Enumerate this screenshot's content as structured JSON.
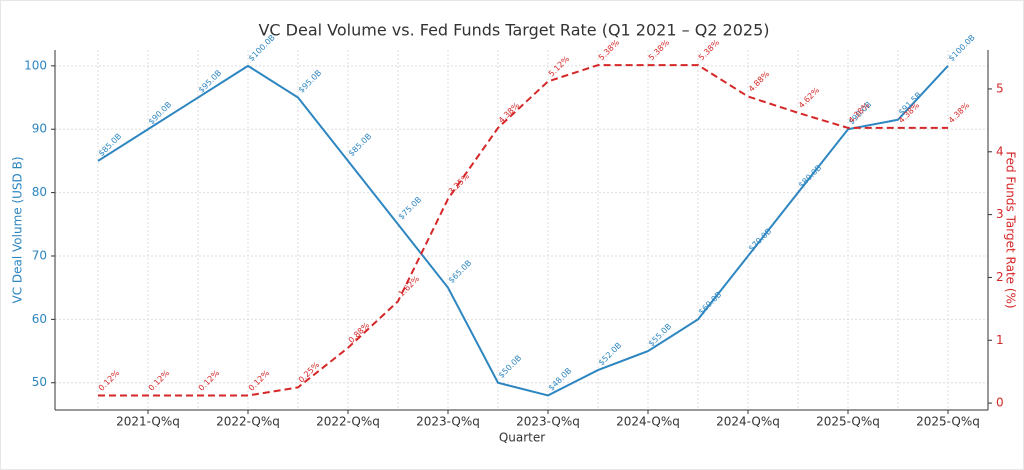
{
  "chart_data": {
    "type": "line",
    "title": "VC Deal Volume vs. Fed Funds Target Rate (Q1 2021 – Q2 2025)",
    "xlabel": "Quarter",
    "ylabel": "VC Deal Volume (USD B)",
    "y2label": "Fed Funds Target Rate (%)",
    "categories": [
      null,
      "2021-Q%q",
      null,
      "2022-Q%q",
      null,
      "2022-Q%q",
      null,
      "2023-Q%q",
      null,
      "2023-Q%q",
      null,
      "2024-Q%q",
      null,
      "2024-Q%q",
      null,
      "2025-Q%q",
      null,
      "2025-Q%q"
    ],
    "ylim": [
      45.7,
      102.5
    ],
    "yticks": [
      50,
      60,
      70,
      80,
      90,
      100
    ],
    "y2lim": [
      -0.11,
      5.62
    ],
    "y2ticks": [
      0,
      1,
      2,
      3,
      4,
      5
    ],
    "grid": true,
    "series": [
      {
        "color": "#2e86c1",
        "dash": false,
        "values": [
          85.0,
          90.0,
          95.0,
          100.0,
          95.0,
          85.0,
          75.0,
          65.0,
          50.0,
          48.0,
          52.0,
          55.0,
          60.0,
          70.0,
          80.0,
          90.0,
          91.5,
          100.0
        ],
        "value_labels": [
          "$85.0B",
          "$90.0B",
          "$95.0B",
          "$100.0B",
          "$95.0B",
          "$85.0B",
          "$75.0B",
          "$65.0B",
          "$50.0B",
          "$48.0B",
          "$52.0B",
          "$55.0B",
          "$60.0B",
          "$70.0B",
          "$80.0B",
          "$90.0B",
          "$91.5B",
          "$100.0B"
        ]
      },
      {
        "color": "#d62728",
        "dash": true,
        "axis": "y2",
        "values": [
          0.12,
          0.12,
          0.12,
          0.12,
          0.25,
          0.88,
          1.62,
          3.25,
          4.38,
          5.12,
          5.38,
          5.38,
          5.38,
          4.88,
          4.62,
          4.38,
          4.38,
          4.38
        ],
        "value_labels": [
          "0.12%",
          "0.12%",
          "0.12%",
          "0.12%",
          "0.25%",
          "0.88%",
          "1.62%",
          "3.25%",
          "4.38%",
          "5.12%",
          "5.38%",
          "5.38%",
          "5.38%",
          "4.88%",
          "4.62%",
          "4.38%",
          "4.38%",
          "4.38%"
        ]
      }
    ]
  }
}
